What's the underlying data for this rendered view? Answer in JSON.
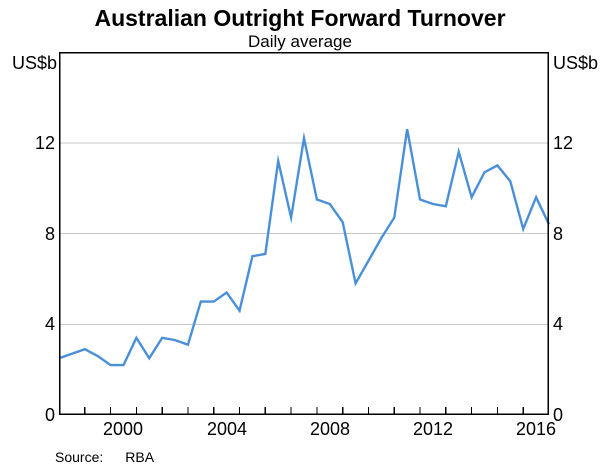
{
  "header": {
    "title": "Australian Outright Forward Turnover",
    "subtitle": "Daily average"
  },
  "axes": {
    "unit_left": "US$b",
    "unit_right": "US$b"
  },
  "footer": {
    "source_label": "Source:",
    "source_value": "RBA"
  },
  "chart_data": {
    "type": "line",
    "title": "Australian Outright Forward Turnover",
    "subtitle": "Daily average",
    "ylabel": "US$b",
    "ylabel_right": "US$b",
    "ylim": [
      0,
      16
    ],
    "y_ticks": [
      12,
      8,
      4,
      0
    ],
    "gridlines": [
      4,
      8,
      12
    ],
    "grid_on": true,
    "xlim": [
      1998,
      2017
    ],
    "x_minor_tick_step": 1,
    "x_labels": [
      "2000",
      "2004",
      "2008",
      "2012",
      "2016"
    ],
    "x_label_years": [
      2000,
      2004,
      2008,
      2012,
      2016
    ],
    "x_start": 1998,
    "x_step": 0.5,
    "x_frequency": "semi-annual",
    "values": [
      2.5,
      2.7,
      2.9,
      2.6,
      2.2,
      2.2,
      3.4,
      2.5,
      3.4,
      3.3,
      3.1,
      5.0,
      5.0,
      5.4,
      4.6,
      7.0,
      7.1,
      11.2,
      8.7,
      12.2,
      9.5,
      9.3,
      8.5,
      5.8,
      6.8,
      7.8,
      8.7,
      12.6,
      9.5,
      9.3,
      9.2,
      11.6,
      9.6,
      10.7,
      11.0,
      10.3,
      8.2,
      9.6,
      8.4
    ],
    "line_color": "#4a90d9",
    "grid_color": "#c8c8c8",
    "frame_color": "#000000",
    "legend": "none"
  }
}
